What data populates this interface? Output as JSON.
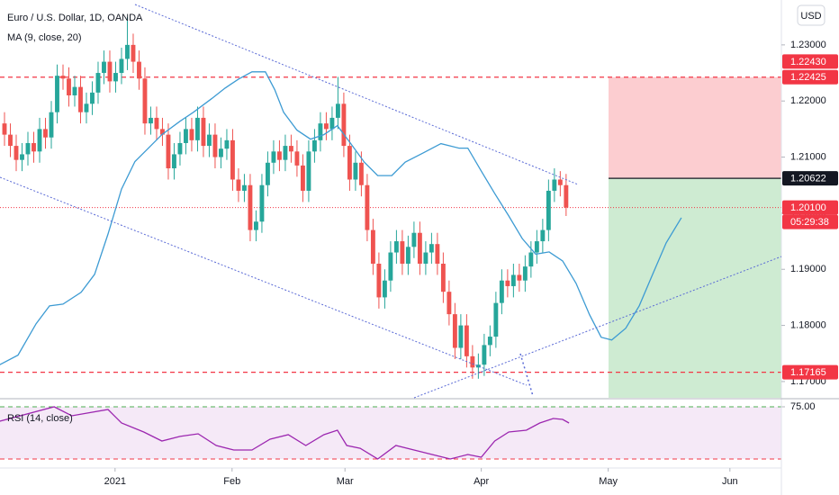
{
  "header": {
    "symbol": "Euro / U.S. Dollar, 1D, OANDA",
    "ma_label": "MA (9, close, 20)",
    "rsi_label": "RSI (14, close)",
    "currency": "USD"
  },
  "chart_data": {
    "type": "candlestick",
    "up_color": "#26a69a",
    "down_color": "#ef5350",
    "candles": [
      [
        1.216,
        1.218,
        1.212,
        1.214
      ],
      [
        1.214,
        1.216,
        1.21,
        1.212
      ],
      [
        1.212,
        1.214,
        1.2075,
        1.2095
      ],
      [
        1.2095,
        1.2125,
        1.2075,
        1.2105
      ],
      [
        1.2105,
        1.2145,
        1.2085,
        1.2125
      ],
      [
        1.2125,
        1.2145,
        1.209,
        1.211
      ],
      [
        1.211,
        1.217,
        1.209,
        1.215
      ],
      [
        1.215,
        1.217,
        1.2115,
        1.2135
      ],
      [
        1.2135,
        1.22,
        1.2115,
        1.218
      ],
      [
        1.218,
        1.2265,
        1.216,
        1.2245
      ],
      [
        1.2245,
        1.2265,
        1.222,
        1.224
      ],
      [
        1.224,
        1.226,
        1.219,
        1.221
      ],
      [
        1.221,
        1.2245,
        1.219,
        1.2225
      ],
      [
        1.2225,
        1.2245,
        1.216,
        1.218
      ],
      [
        1.218,
        1.2215,
        1.216,
        1.2195
      ],
      [
        1.2195,
        1.2235,
        1.2175,
        1.2215
      ],
      [
        1.2215,
        1.227,
        1.2195,
        1.225
      ],
      [
        1.225,
        1.229,
        1.223,
        1.227
      ],
      [
        1.227,
        1.229,
        1.2215,
        1.2235
      ],
      [
        1.2235,
        1.227,
        1.2215,
        1.225
      ],
      [
        1.225,
        1.2295,
        1.223,
        1.2275
      ],
      [
        1.2275,
        1.235,
        1.2255,
        1.23
      ],
      [
        1.23,
        1.232,
        1.225,
        1.227
      ],
      [
        1.227,
        1.229,
        1.222,
        1.224
      ],
      [
        1.224,
        1.226,
        1.214,
        1.216
      ],
      [
        1.216,
        1.219,
        1.214,
        1.217
      ],
      [
        1.217,
        1.219,
        1.213,
        1.215
      ],
      [
        1.215,
        1.217,
        1.212,
        1.214
      ],
      [
        1.214,
        1.216,
        1.206,
        1.208
      ],
      [
        1.208,
        1.2125,
        1.206,
        1.2105
      ],
      [
        1.2105,
        1.2145,
        1.2085,
        1.2125
      ],
      [
        1.2125,
        1.217,
        1.2105,
        1.215
      ],
      [
        1.215,
        1.217,
        1.211,
        1.213
      ],
      [
        1.213,
        1.219,
        1.211,
        1.217
      ],
      [
        1.217,
        1.219,
        1.21,
        1.212
      ],
      [
        1.212,
        1.216,
        1.21,
        1.214
      ],
      [
        1.214,
        1.216,
        1.208,
        1.21
      ],
      [
        1.21,
        1.2135,
        1.208,
        1.2115
      ],
      [
        1.2115,
        1.215,
        1.2095,
        1.213
      ],
      [
        1.213,
        1.215,
        1.204,
        1.206
      ],
      [
        1.206,
        1.208,
        1.202,
        1.204
      ],
      [
        1.204,
        1.207,
        1.202,
        1.205
      ],
      [
        1.205,
        1.207,
        1.195,
        1.197
      ],
      [
        1.197,
        1.2005,
        1.195,
        1.1985
      ],
      [
        1.1985,
        1.207,
        1.1965,
        1.205
      ],
      [
        1.205,
        1.211,
        1.203,
        1.209
      ],
      [
        1.209,
        1.213,
        1.207,
        1.211
      ],
      [
        1.211,
        1.213,
        1.2075,
        1.2095
      ],
      [
        1.2095,
        1.214,
        1.2075,
        1.212
      ],
      [
        1.212,
        1.214,
        1.209,
        1.211
      ],
      [
        1.211,
        1.213,
        1.2065,
        1.2085
      ],
      [
        1.2085,
        1.2105,
        1.202,
        1.204
      ],
      [
        1.204,
        1.213,
        1.202,
        1.211
      ],
      [
        1.211,
        1.215,
        1.209,
        1.213
      ],
      [
        1.213,
        1.218,
        1.211,
        1.216
      ],
      [
        1.216,
        1.218,
        1.213,
        1.215
      ],
      [
        1.215,
        1.219,
        1.213,
        1.217
      ],
      [
        1.217,
        1.2243,
        1.215,
        1.2195
      ],
      [
        1.2195,
        1.2215,
        1.21,
        1.212
      ],
      [
        1.212,
        1.214,
        1.204,
        1.206
      ],
      [
        1.206,
        1.211,
        1.204,
        1.209
      ],
      [
        1.209,
        1.211,
        1.203,
        1.205
      ],
      [
        1.205,
        1.207,
        1.195,
        1.197
      ],
      [
        1.197,
        1.199,
        1.189,
        1.191
      ],
      [
        1.191,
        1.193,
        1.183,
        1.185
      ],
      [
        1.185,
        1.19,
        1.183,
        1.188
      ],
      [
        1.188,
        1.195,
        1.186,
        1.193
      ],
      [
        1.193,
        1.197,
        1.191,
        1.195
      ],
      [
        1.195,
        1.197,
        1.189,
        1.191
      ],
      [
        1.191,
        1.196,
        1.189,
        1.194
      ],
      [
        1.194,
        1.1985,
        1.192,
        1.1965
      ],
      [
        1.1965,
        1.1985,
        1.189,
        1.191
      ],
      [
        1.191,
        1.195,
        1.189,
        1.193
      ],
      [
        1.193,
        1.1965,
        1.191,
        1.1945
      ],
      [
        1.1945,
        1.1965,
        1.189,
        1.191
      ],
      [
        1.191,
        1.193,
        1.184,
        1.186
      ],
      [
        1.186,
        1.188,
        1.18,
        1.182
      ],
      [
        1.182,
        1.184,
        1.174,
        1.176
      ],
      [
        1.176,
        1.182,
        1.174,
        1.18
      ],
      [
        1.18,
        1.182,
        1.1725,
        1.1745
      ],
      [
        1.1745,
        1.1765,
        1.1705,
        1.1725
      ],
      [
        1.1725,
        1.175,
        1.1705,
        1.173
      ],
      [
        1.173,
        1.1785,
        1.171,
        1.1765
      ],
      [
        1.1765,
        1.18,
        1.1745,
        1.178
      ],
      [
        1.178,
        1.186,
        1.176,
        1.184
      ],
      [
        1.184,
        1.19,
        1.182,
        1.188
      ],
      [
        1.188,
        1.19,
        1.185,
        1.187
      ],
      [
        1.187,
        1.191,
        1.185,
        1.189
      ],
      [
        1.189,
        1.191,
        1.186,
        1.188
      ],
      [
        1.188,
        1.1925,
        1.186,
        1.1905
      ],
      [
        1.1905,
        1.195,
        1.1885,
        1.193
      ],
      [
        1.193,
        1.197,
        1.191,
        1.195
      ],
      [
        1.195,
        1.199,
        1.193,
        1.197
      ],
      [
        1.197,
        1.206,
        1.195,
        1.204
      ],
      [
        1.204,
        1.208,
        1.202,
        1.206
      ],
      [
        1.206,
        1.2075,
        1.203,
        1.205
      ],
      [
        1.205,
        1.207,
        1.1995,
        1.201
      ]
    ],
    "ma": {
      "color": "#3d9bd3",
      "x": [
        -0.8,
        2.3,
        5.4,
        7.7,
        10.0,
        13.1,
        15.4,
        17.7,
        20.0,
        22.3,
        24.6,
        26.9,
        30.0,
        32.3,
        35.4,
        37.7,
        40.0,
        42.3,
        44.6,
        46.2,
        47.7,
        50.0,
        52.3,
        54.6,
        56.9,
        59.2,
        61.5,
        63.8,
        66.2,
        68.5,
        71.5,
        74.6,
        77.7,
        79.2,
        81.5,
        83.8,
        86.2,
        88.5,
        90.8,
        93.1,
        95.4,
        97.7,
        100.0,
        102.0,
        103.8,
        106.2,
        108.5,
        110.8,
        113.1,
        115.7
      ],
      "values": [
        1.173,
        1.1747,
        1.1803,
        1.1835,
        1.1838,
        1.1859,
        1.1891,
        1.1963,
        1.2043,
        1.2092,
        1.2116,
        1.214,
        1.2164,
        1.218,
        1.2204,
        1.2223,
        1.2239,
        1.2252,
        1.2252,
        1.222,
        1.218,
        1.2148,
        1.2132,
        1.214,
        1.2156,
        1.2124,
        1.2091,
        1.2067,
        1.2067,
        1.2091,
        1.2107,
        1.2124,
        1.2116,
        1.2116,
        1.2075,
        1.2035,
        1.1995,
        1.1955,
        1.1927,
        1.1931,
        1.1915,
        1.1875,
        1.1819,
        1.1779,
        1.1774,
        1.1795,
        1.1835,
        1.1891,
        1.1947,
        1.1992
      ]
    },
    "xlim": [
      -0.77,
      132.8
    ],
    "xticks": [
      {
        "value": 18.9,
        "label": "2021"
      },
      {
        "value": 38.9,
        "label": "Feb"
      },
      {
        "value": 58.2,
        "label": "Mar"
      },
      {
        "value": 81.5,
        "label": "Apr"
      },
      {
        "value": 103.2,
        "label": "May"
      },
      {
        "value": 124,
        "label": "Jun"
      }
    ],
    "ylim": [
      1.1671,
      1.238
    ],
    "yticks": [
      {
        "value": 1.23,
        "label": "1.23000"
      },
      {
        "value": 1.22,
        "label": "1.22000"
      },
      {
        "value": 1.21,
        "label": "1.21000"
      },
      {
        "value": 1.2,
        "label": "1.20000"
      },
      {
        "value": 1.19,
        "label": "1.19000"
      },
      {
        "value": 1.18,
        "label": "1.18000"
      },
      {
        "value": 1.17,
        "label": "1.17000"
      }
    ],
    "grid": false,
    "price_lines": [
      {
        "value": 1.2243,
        "label": "1.22430",
        "color": "#f23645",
        "style": "none"
      },
      {
        "value": 1.22425,
        "label": "1.22425",
        "color": "#f23645",
        "style": "dashed"
      },
      {
        "value": 1.20622,
        "label": "1.20622",
        "color": "#131722",
        "style": "solid"
      },
      {
        "value": 1.201,
        "label": "1.20100",
        "color": "#f23645",
        "style": "dotted"
      },
      {
        "value": 1.17165,
        "label": "1.17165",
        "color": "#f23645",
        "style": "dashed"
      }
    ],
    "countdown": "05:29:38",
    "rsi": {
      "color": "#9c27b0",
      "ylim": [
        18.1,
        81.9
      ],
      "band": [
        25,
        75
      ],
      "yticks": [
        {
          "value": 75,
          "label": "75.00"
        }
      ],
      "x": [
        -0.8,
        8.5,
        11.5,
        17.7,
        20.0,
        23.8,
        26.9,
        30.0,
        33.1,
        36.2,
        39.2,
        42.3,
        45.4,
        48.5,
        51.5,
        54.6,
        56.9,
        58.5,
        60.8,
        63.8,
        66.9,
        70.0,
        73.1,
        76.2,
        79.2,
        81.5,
        83.8,
        86.2,
        89.2,
        91.5,
        93.8,
        95.4,
        96.5
      ],
      "values": [
        61.2,
        75.0,
        66.4,
        72.4,
        59.5,
        50.9,
        42.2,
        46.6,
        49.1,
        37.9,
        33.6,
        33.6,
        44.0,
        48.3,
        37.9,
        48.3,
        52.6,
        37.9,
        35.3,
        25.0,
        37.9,
        33.6,
        29.3,
        25.0,
        29.3,
        26.7,
        42.2,
        50.9,
        52.6,
        59.5,
        63.8,
        62.9,
        59.5
      ]
    }
  }
}
